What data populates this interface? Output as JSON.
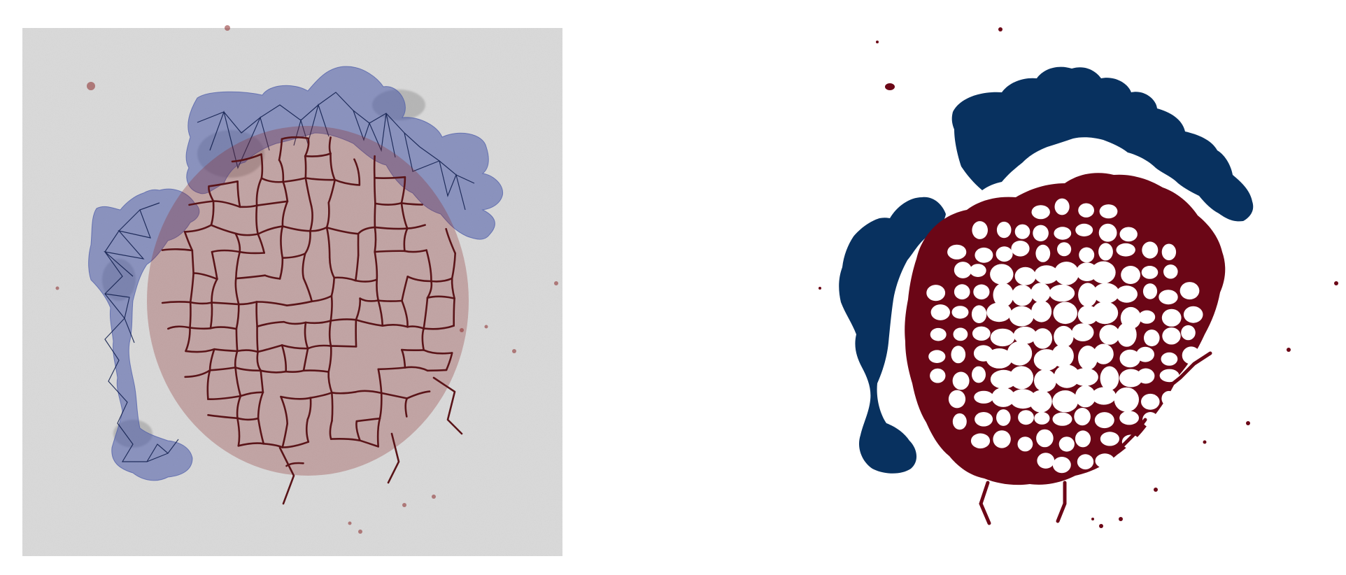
{
  "figure": {
    "panels": [
      {
        "id": "overlay",
        "background": "micrograph-grayscale",
        "background_color": "#d9d9d9",
        "region_colors": {
          "outer": "#4a5aa8",
          "inner": "#8a2a2a"
        },
        "skeleton_color": "#4a0f14",
        "graph_edge_color": "#0d1b4a"
      },
      {
        "id": "segmentation",
        "background": "white",
        "background_color": "#ffffff",
        "region_colors": {
          "outer": "#08315f",
          "inner": "#6b0616"
        }
      }
    ]
  }
}
